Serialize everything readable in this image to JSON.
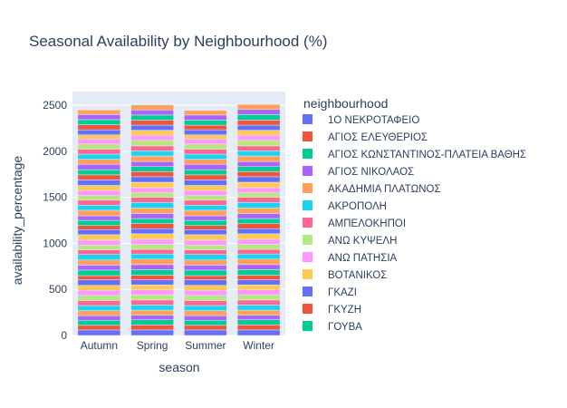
{
  "chart_data": {
    "type": "bar",
    "stacked": true,
    "title": "Seasonal Availability by Neighbourhood (%)",
    "xlabel": "season",
    "ylabel": "availability_percentage",
    "categories": [
      "Autumn",
      "Spring",
      "Summer",
      "Winter"
    ],
    "ylim": [
      0,
      2650
    ],
    "yticks": [
      0,
      500,
      1000,
      1500,
      2000,
      2500
    ],
    "grid": true,
    "legend": {
      "title": "neighbourhood",
      "placement": "right",
      "entries": [
        {
          "name": "1Ο ΝΕΚΡΟΤΑΦΕΙΟ",
          "color": "#636efa"
        },
        {
          "name": "ΑΓΙΟΣ ΕΛΕΥΘΕΡΙΟΣ",
          "color": "#ef553b"
        },
        {
          "name": "ΑΓΙΟΣ ΚΩΝΣΤΑΝΤΙΝΟΣ-ΠΛΑΤΕΙΑ ΒΑΘΗΣ",
          "color": "#00cc96"
        },
        {
          "name": "ΑΓΙΟΣ ΝΙΚΟΛΑΟΣ",
          "color": "#ab63fa"
        },
        {
          "name": "ΑΚΑΔΗΜΙΑ ΠΛΑΤΩΝΟΣ",
          "color": "#ffa15a"
        },
        {
          "name": "ΑΚΡΟΠΟΛΗ",
          "color": "#19d3f3"
        },
        {
          "name": "ΑΜΠΕΛΟΚΗΠΟΙ",
          "color": "#ff6692"
        },
        {
          "name": "ΑΝΩ ΚΥΨΕΛΗ",
          "color": "#b6e880"
        },
        {
          "name": "ΑΝΩ ΠΑΤΗΣΙΑ",
          "color": "#ff97ff"
        },
        {
          "name": "ΒΟΤΑΝΙΚΟΣ",
          "color": "#fecb52"
        },
        {
          "name": "ΓΚΑΖΙ",
          "color": "#636efa"
        },
        {
          "name": "ΓΚΥΖΗ",
          "color": "#ef553b"
        },
        {
          "name": "ΓΟΥΒΑ",
          "color": "#00cc96"
        }
      ]
    },
    "palette": [
      "#636efa",
      "#ef553b",
      "#00cc96",
      "#ab63fa",
      "#ffa15a",
      "#19d3f3",
      "#ff6692",
      "#b6e880",
      "#ff97ff",
      "#fecb52"
    ],
    "series_values": {
      "Autumn": [
        60,
        50,
        55,
        50,
        55,
        55,
        55,
        55,
        55,
        55,
        60,
        45,
        60,
        55,
        55,
        60,
        50,
        50,
        55,
        60,
        55,
        45,
        55,
        50,
        60,
        55,
        55,
        50,
        55,
        55,
        60,
        55,
        55,
        60,
        55,
        55,
        55,
        55,
        55,
        45,
        55,
        55,
        55,
        55,
        50
      ],
      "Spring": [
        60,
        55,
        55,
        50,
        55,
        55,
        55,
        55,
        55,
        55,
        55,
        50,
        60,
        55,
        60,
        55,
        50,
        55,
        55,
        60,
        55,
        55,
        55,
        55,
        60,
        60,
        55,
        50,
        55,
        60,
        60,
        55,
        55,
        55,
        60,
        55,
        55,
        60,
        55,
        55,
        55,
        55,
        55,
        55,
        55
      ],
      "Summer": [
        60,
        50,
        55,
        50,
        55,
        55,
        55,
        55,
        55,
        55,
        60,
        45,
        60,
        55,
        55,
        60,
        50,
        50,
        55,
        60,
        55,
        45,
        55,
        50,
        60,
        55,
        55,
        50,
        55,
        55,
        60,
        55,
        55,
        60,
        55,
        55,
        55,
        55,
        55,
        45,
        55,
        50,
        55,
        55,
        50
      ],
      "Winter": [
        60,
        55,
        55,
        50,
        55,
        55,
        55,
        55,
        55,
        55,
        55,
        50,
        60,
        55,
        60,
        55,
        50,
        55,
        55,
        60,
        55,
        55,
        55,
        55,
        60,
        60,
        55,
        50,
        55,
        60,
        60,
        55,
        55,
        55,
        60,
        55,
        55,
        60,
        55,
        55,
        55,
        55,
        60,
        55,
        55
      ]
    }
  }
}
